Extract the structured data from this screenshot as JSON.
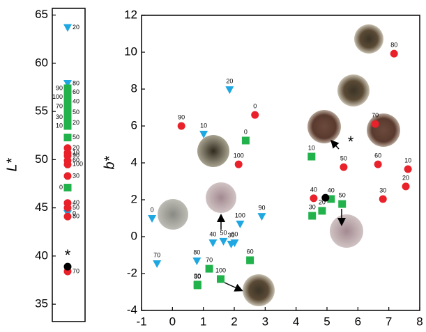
{
  "chart_data": [
    {
      "type": "scatter",
      "ylabel": "L*",
      "ylim": [
        33.2,
        65.7
      ],
      "yticks": [
        35,
        40,
        45,
        50,
        55,
        60,
        65
      ],
      "annotation": "*",
      "series": [
        {
          "color": "#1ea7e1",
          "marker": "triangle",
          "values": [
            63.7,
            57.9,
            44.4
          ],
          "labels": [
            "20",
            "80",
            "0"
          ]
        },
        {
          "color": "#22b24c",
          "marker": "square",
          "values": [
            57.4,
            57.0,
            56.5,
            56.0,
            55.5,
            54.9,
            54.4,
            53.8,
            53.5,
            52.3,
            47.1
          ],
          "labels": [
            "90",
            "60",
            "100",
            "40",
            "70",
            "50",
            "30",
            "20",
            "10",
            "50",
            "0"
          ]
        },
        {
          "color": "#e8212a",
          "marker": "circle",
          "values": [
            51.2,
            50.7,
            50.4,
            49.9,
            49.5,
            48.3,
            45.5,
            45.0,
            44.1,
            38.4
          ],
          "labels": [
            "20",
            "10",
            "90",
            "60",
            "100",
            "30",
            "40",
            "50",
            "80",
            "70"
          ]
        },
        {
          "color": "#000000",
          "marker": "circle",
          "values": [
            38.9
          ],
          "labels": []
        }
      ]
    },
    {
      "type": "scatter",
      "ylabel": "b*",
      "xlim": [
        -1,
        8
      ],
      "ylim": [
        -4,
        12
      ],
      "xticks": [
        -1,
        0,
        1,
        2,
        3,
        4,
        5,
        6,
        7,
        8
      ],
      "yticks": [
        -4,
        -2,
        0,
        2,
        4,
        6,
        8,
        10,
        12
      ],
      "annotation": "*",
      "series": [
        {
          "color": "#1ea7e1",
          "marker": "triangle",
          "x": [
            1.85,
            1.01,
            -0.66,
            -0.5,
            0.79,
            1.31,
            1.65,
            2.01,
            1.9,
            2.19,
            2.89
          ],
          "values": [
            7.96,
            5.55,
            0.98,
            -1.47,
            -1.32,
            -0.34,
            -0.26,
            -0.34,
            -0.41,
            0.68,
            1.09
          ],
          "labels": [
            "20",
            "10",
            "0",
            "70",
            "80",
            "40",
            "50",
            "60",
            "30",
            "100",
            "90"
          ]
        },
        {
          "color": "#22b24c",
          "marker": "square",
          "x": [
            2.37,
            4.5,
            5.13,
            5.49,
            4.84,
            4.52,
            2.51,
            1.19,
            1.56,
            0.81,
            0.81
          ],
          "values": [
            5.21,
            4.34,
            2.04,
            1.77,
            1.4,
            1.13,
            -1.28,
            -1.74,
            -2.3,
            -2.6,
            -2.64
          ],
          "labels": [
            "0",
            "10",
            "40",
            "50",
            "20",
            "30",
            "60",
            "70",
            "100",
            "90",
            "80"
          ]
        },
        {
          "color": "#e8212a",
          "marker": "circle",
          "x": [
            0.29,
            2.67,
            2.14,
            7.17,
            6.56,
            5.54,
            6.65,
            7.62,
            7.55,
            4.57,
            6.81
          ],
          "values": [
            6.0,
            6.6,
            3.92,
            9.92,
            6.11,
            3.77,
            3.92,
            3.66,
            2.72,
            2.08,
            2.04
          ],
          "labels": [
            "90",
            "0",
            "100",
            "80",
            "70",
            "50",
            "60",
            "10",
            "20",
            "40",
            "30"
          ]
        },
        {
          "color": "#000000",
          "marker": "circle",
          "x": [
            4.95
          ],
          "values": [
            2.11
          ],
          "labels": []
        }
      ]
    }
  ]
}
